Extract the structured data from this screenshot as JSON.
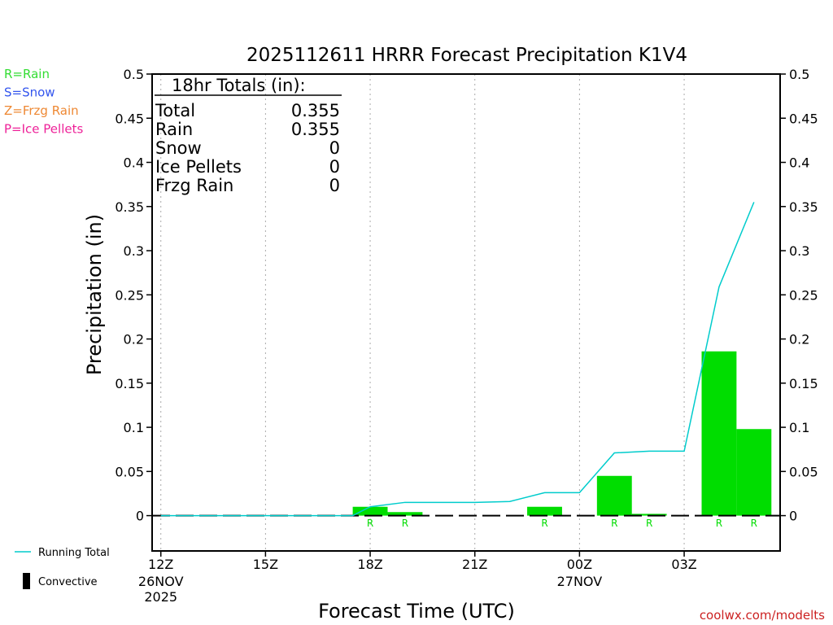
{
  "chart_data": {
    "type": "bar",
    "title": "2025112611 HRRR Forecast Precipitation K1V4",
    "xlabel": "Forecast Time (UTC)",
    "ylabel": "Precipitation (in)",
    "ylim": [
      -0.04,
      0.5
    ],
    "xlim": [
      -0.25,
      17.75
    ],
    "yticks": [
      0,
      0.05,
      0.1,
      0.15,
      0.2,
      0.25,
      0.3,
      0.35,
      0.4,
      0.45,
      0.5
    ],
    "ytick_labels": [
      "0",
      "0.05",
      "0.1",
      "0.15",
      "0.2",
      "0.25",
      "0.3",
      "0.35",
      "0.4",
      "0.45",
      "0.5"
    ],
    "xticks": [
      {
        "x": 0,
        "label": "12Z",
        "label2": "26NOV",
        "label3": "2025"
      },
      {
        "x": 3,
        "label": "15Z",
        "label2": "",
        "label3": ""
      },
      {
        "x": 6,
        "label": "18Z",
        "label2": "",
        "label3": ""
      },
      {
        "x": 9,
        "label": "21Z",
        "label2": "",
        "label3": ""
      },
      {
        "x": 12,
        "label": "00Z",
        "label2": "27NOV",
        "label3": ""
      },
      {
        "x": 15,
        "label": "03Z",
        "label2": "",
        "label3": ""
      }
    ],
    "grid_x": true,
    "bar_color": "#00dd00",
    "line_color": "#00cccc",
    "bars": [
      {
        "x": 6,
        "value": 0.01,
        "type": "R"
      },
      {
        "x": 7,
        "value": 0.004,
        "type": "R"
      },
      {
        "x": 11,
        "value": 0.01,
        "type": "R"
      },
      {
        "x": 13,
        "value": 0.045,
        "type": "R"
      },
      {
        "x": 14,
        "value": 0.002,
        "type": "R"
      },
      {
        "x": 16,
        "value": 0.186,
        "type": "R"
      },
      {
        "x": 17,
        "value": 0.098,
        "type": "R"
      }
    ],
    "running_total": {
      "x": [
        0,
        1,
        2,
        3,
        4,
        5,
        5.5,
        6,
        7,
        8,
        9,
        10,
        11,
        12,
        13,
        14,
        15,
        16,
        17
      ],
      "y": [
        0,
        0,
        0,
        0,
        0,
        0,
        0,
        0.01,
        0.015,
        0.015,
        0.015,
        0.016,
        0.026,
        0.026,
        0.071,
        0.073,
        0.073,
        0.259,
        0.355
      ]
    },
    "totals_box": {
      "header": "18hr Totals (in):",
      "rows": [
        {
          "label": "Total",
          "value": "0.355"
        },
        {
          "label": "Rain",
          "value": "0.355"
        },
        {
          "label": "Snow",
          "value": "0"
        },
        {
          "label": "Ice Pellets",
          "value": "0"
        },
        {
          "label": "Frzg Rain",
          "value": "0"
        }
      ]
    },
    "type_legend": [
      {
        "text": "R=Rain",
        "color": "#33dd33"
      },
      {
        "text": "S=Snow",
        "color": "#3355ee"
      },
      {
        "text": "Z=Frzg Rain",
        "color": "#ee8833"
      },
      {
        "text": "P=Ice Pellets",
        "color": "#ee2299"
      }
    ],
    "bottom_legend": [
      {
        "text": "Running Total",
        "kind": "line",
        "color": "#00cccc"
      },
      {
        "text": "Convective",
        "kind": "bar",
        "color": "#000000"
      }
    ],
    "credit": "coolwx.com/modelts",
    "credit_color": "#cc2222"
  }
}
